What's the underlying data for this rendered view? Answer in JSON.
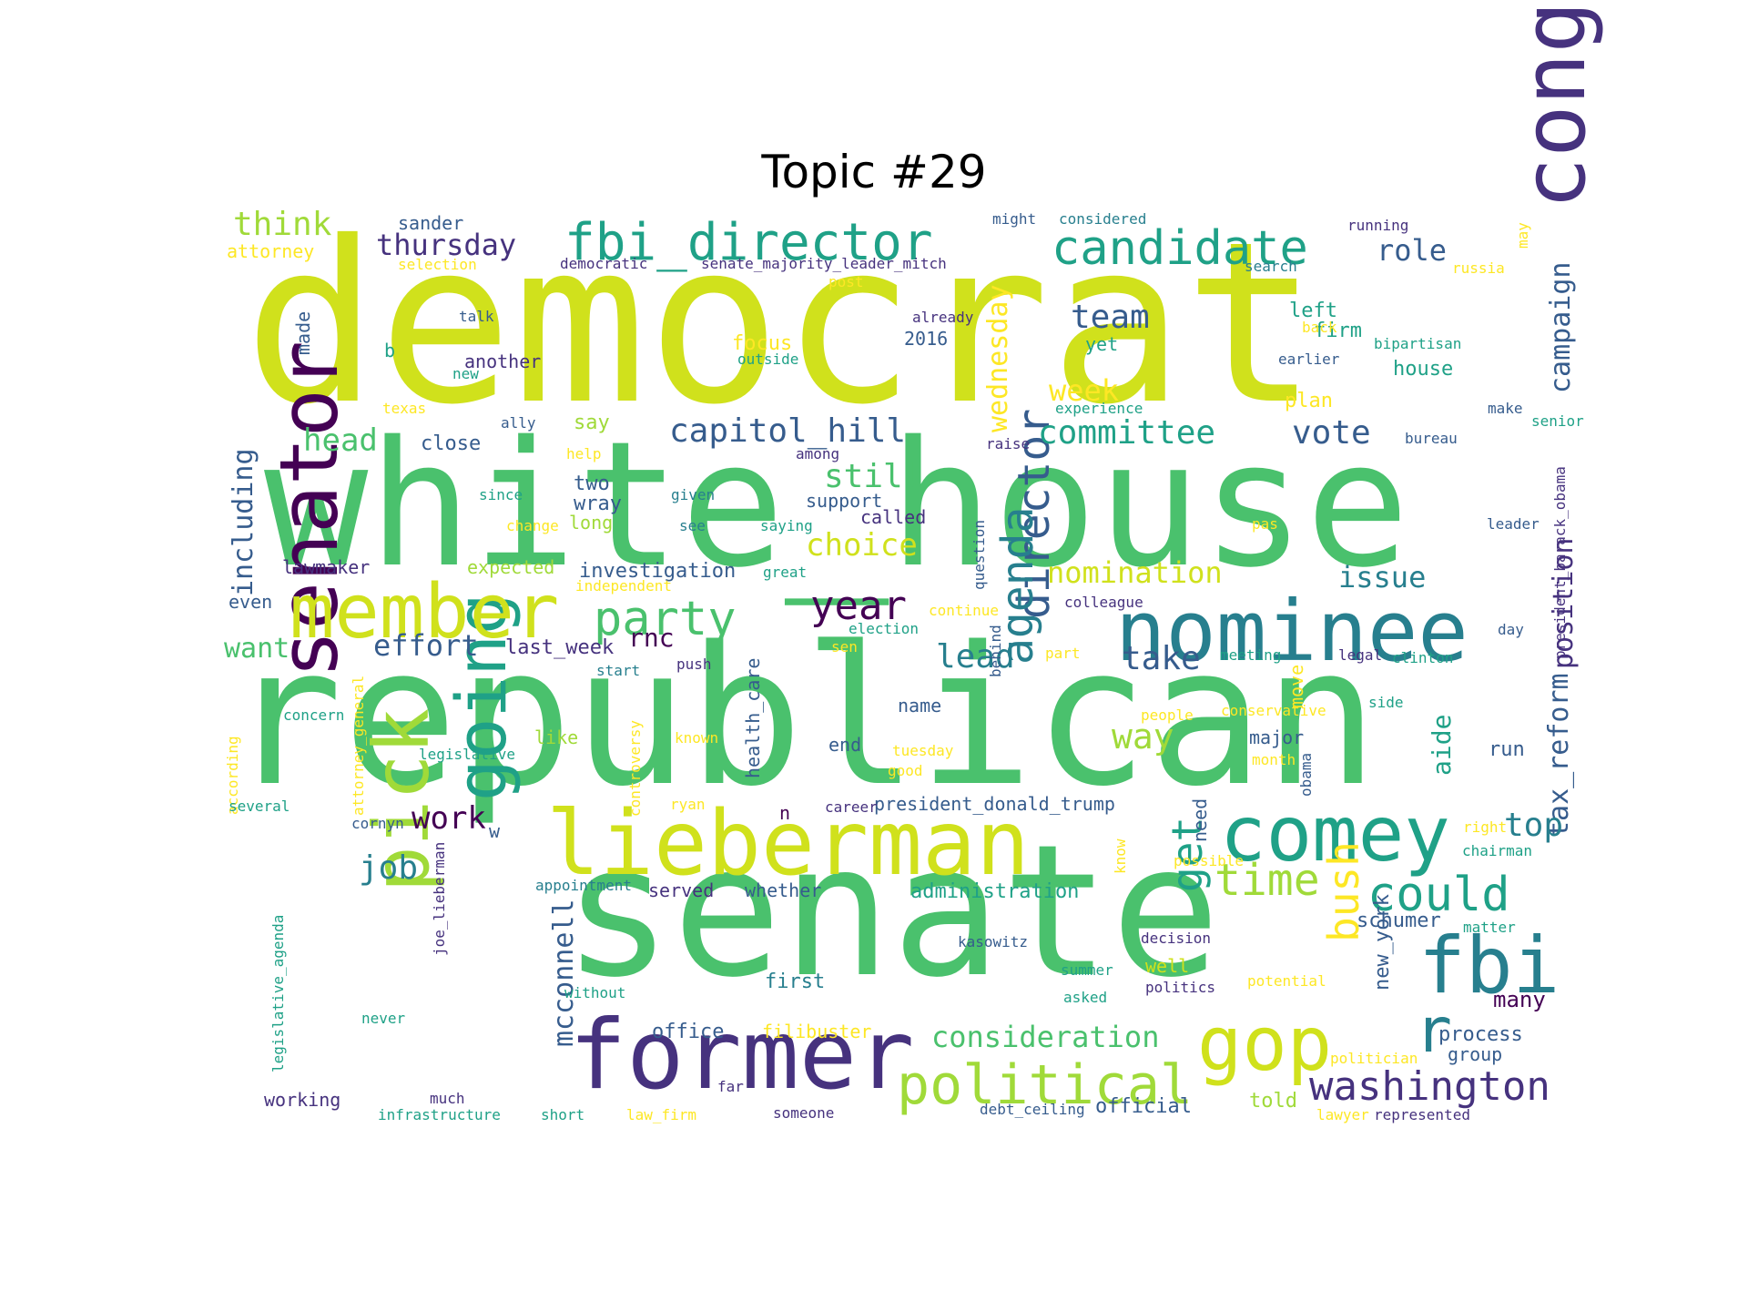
{
  "title": "Topic #29",
  "palette": {
    "dark_purple": "#46327e",
    "deep_purple": "#440154",
    "blue": "#365c8d",
    "teal_blue": "#277f8e",
    "teal": "#1fa187",
    "green": "#4ac16d",
    "light_green": "#a0da39",
    "yellow_green": "#d0e11c",
    "yellow": "#fde725"
  },
  "words": [
    {
      "text": "democrat",
      "color": "yellow_green"
    },
    {
      "text": "white_house",
      "color": "green"
    },
    {
      "text": "republican",
      "color": "green"
    },
    {
      "text": "senate",
      "color": "green"
    },
    {
      "text": "former",
      "color": "dark_purple"
    },
    {
      "text": "lieberman",
      "color": "yellow_green"
    },
    {
      "text": "congress",
      "color": "dark_purple"
    },
    {
      "text": "nominee",
      "color": "teal_blue"
    },
    {
      "text": "senator",
      "color": "deep_purple"
    },
    {
      "text": "pick",
      "color": "light_green"
    },
    {
      "text": "going",
      "color": "teal"
    },
    {
      "text": "member",
      "color": "yellow_green"
    },
    {
      "text": "comey",
      "color": "teal"
    },
    {
      "text": "fbi",
      "color": "teal_blue"
    },
    {
      "text": "gop",
      "color": "yellow_green"
    },
    {
      "text": "fbi_director",
      "color": "teal"
    },
    {
      "text": "candidate",
      "color": "teal"
    },
    {
      "text": "director",
      "color": "blue"
    },
    {
      "text": "political",
      "color": "light_green"
    },
    {
      "text": "party",
      "color": "green"
    },
    {
      "text": "agenda",
      "color": "teal_blue"
    },
    {
      "text": "time",
      "color": "light_green"
    },
    {
      "text": "could",
      "color": "teal"
    },
    {
      "text": "washington",
      "color": "dark_purple"
    },
    {
      "text": "year",
      "color": "deep_purple"
    },
    {
      "text": "get",
      "color": "teal"
    },
    {
      "text": "r",
      "color": "teal_blue"
    },
    {
      "text": "bush",
      "color": "yellow"
    },
    {
      "text": "mcconnell",
      "color": "blue"
    },
    {
      "text": "tax_reform",
      "color": "blue"
    },
    {
      "text": "position",
      "color": "dark_purple"
    },
    {
      "text": "campaign",
      "color": "blue"
    },
    {
      "text": "including",
      "color": "blue"
    },
    {
      "text": "wednesday",
      "color": "yellow"
    },
    {
      "text": "capitol_hill",
      "color": "blue"
    },
    {
      "text": "committee",
      "color": "teal"
    },
    {
      "text": "vote",
      "color": "blue"
    },
    {
      "text": "consideration",
      "color": "green"
    },
    {
      "text": "think",
      "color": "light_green"
    },
    {
      "text": "thursday",
      "color": "dark_purple"
    },
    {
      "text": "role",
      "color": "blue"
    },
    {
      "text": "team",
      "color": "blue"
    },
    {
      "text": "week",
      "color": "yellow"
    },
    {
      "text": "choice",
      "color": "yellow_green"
    },
    {
      "text": "nomination",
      "color": "yellow_green"
    },
    {
      "text": "issue",
      "color": "teal_blue"
    },
    {
      "text": "head",
      "color": "green"
    },
    {
      "text": "still",
      "color": "green"
    },
    {
      "text": "lead",
      "color": "teal_blue"
    },
    {
      "text": "take",
      "color": "blue"
    },
    {
      "text": "way",
      "color": "light_green"
    },
    {
      "text": "job",
      "color": "teal_blue"
    },
    {
      "text": "work",
      "color": "deep_purple"
    },
    {
      "text": "top",
      "color": "teal_blue"
    },
    {
      "text": "want",
      "color": "green"
    },
    {
      "text": "effort",
      "color": "blue"
    },
    {
      "text": "rnc",
      "color": "deep_purple"
    },
    {
      "text": "aide",
      "color": "teal"
    },
    {
      "text": "schumer",
      "color": "blue"
    },
    {
      "text": "new_york",
      "color": "blue"
    },
    {
      "text": "process",
      "color": "blue"
    },
    {
      "text": "many",
      "color": "deep_purple"
    },
    {
      "text": "investigation",
      "color": "blue"
    },
    {
      "text": "administration",
      "color": "teal"
    },
    {
      "text": "president_donald_trump",
      "color": "blue"
    },
    {
      "text": "first",
      "color": "teal_blue"
    },
    {
      "text": "office",
      "color": "blue"
    },
    {
      "text": "official",
      "color": "blue"
    },
    {
      "text": "told",
      "color": "light_green"
    },
    {
      "text": "close",
      "color": "blue"
    },
    {
      "text": "say",
      "color": "light_green"
    },
    {
      "text": "two",
      "color": "blue"
    },
    {
      "text": "wray",
      "color": "blue"
    },
    {
      "text": "support",
      "color": "blue"
    },
    {
      "text": "long",
      "color": "light_green"
    },
    {
      "text": "called",
      "color": "dark_purple"
    },
    {
      "text": "lawmaker",
      "color": "dark_purple"
    },
    {
      "text": "expected",
      "color": "light_green"
    },
    {
      "text": "last_week",
      "color": "dark_purple"
    },
    {
      "text": "even",
      "color": "blue"
    },
    {
      "text": "name",
      "color": "blue"
    },
    {
      "text": "end",
      "color": "blue"
    },
    {
      "text": "major",
      "color": "blue"
    },
    {
      "text": "run",
      "color": "blue"
    },
    {
      "text": "like",
      "color": "light_green"
    },
    {
      "text": "health_care",
      "color": "blue"
    },
    {
      "text": "served",
      "color": "dark_purple"
    },
    {
      "text": "whether",
      "color": "blue"
    },
    {
      "text": "working",
      "color": "dark_purple"
    },
    {
      "text": "filibuster",
      "color": "yellow"
    },
    {
      "text": "well",
      "color": "yellow_green"
    },
    {
      "text": "group",
      "color": "blue"
    },
    {
      "text": "yet",
      "color": "teal"
    },
    {
      "text": "left",
      "color": "teal"
    },
    {
      "text": "firm",
      "color": "teal"
    },
    {
      "text": "house",
      "color": "teal"
    },
    {
      "text": "plan",
      "color": "yellow"
    },
    {
      "text": "focus",
      "color": "yellow"
    },
    {
      "text": "sander",
      "color": "blue"
    },
    {
      "text": "attorney",
      "color": "yellow"
    },
    {
      "text": "another",
      "color": "dark_purple"
    },
    {
      "text": "2016",
      "color": "blue"
    },
    {
      "text": "b",
      "color": "teal"
    },
    {
      "text": "made",
      "color": "blue"
    },
    {
      "text": "need",
      "color": "blue"
    },
    {
      "text": "move",
      "color": "yellow"
    },
    {
      "text": "n",
      "color": "deep_purple"
    },
    {
      "text": "w",
      "color": "blue"
    },
    {
      "text": "might",
      "color": "blue"
    },
    {
      "text": "considered",
      "color": "teal_blue"
    },
    {
      "text": "running",
      "color": "dark_purple"
    },
    {
      "text": "democratic",
      "color": "dark_purple"
    },
    {
      "text": "senate_majority_leader_mitch",
      "color": "dark_purple"
    },
    {
      "text": "selection",
      "color": "yellow"
    },
    {
      "text": "search",
      "color": "teal_blue"
    },
    {
      "text": "russia",
      "color": "yellow"
    },
    {
      "text": "may",
      "color": "yellow"
    },
    {
      "text": "post",
      "color": "yellow"
    },
    {
      "text": "talk",
      "color": "blue"
    },
    {
      "text": "already",
      "color": "dark_purple"
    },
    {
      "text": "back",
      "color": "yellow"
    },
    {
      "text": "bipartisan",
      "color": "teal"
    },
    {
      "text": "outside",
      "color": "teal"
    },
    {
      "text": "new",
      "color": "teal"
    },
    {
      "text": "earlier",
      "color": "blue"
    },
    {
      "text": "texas",
      "color": "yellow"
    },
    {
      "text": "experience",
      "color": "teal"
    },
    {
      "text": "make",
      "color": "blue"
    },
    {
      "text": "senior",
      "color": "teal"
    },
    {
      "text": "ally",
      "color": "blue"
    },
    {
      "text": "raise",
      "color": "dark_purple"
    },
    {
      "text": "bureau",
      "color": "blue"
    },
    {
      "text": "among",
      "color": "dark_purple"
    },
    {
      "text": "help",
      "color": "yellow"
    },
    {
      "text": "president_barack_obama",
      "color": "dark_purple"
    },
    {
      "text": "since",
      "color": "teal"
    },
    {
      "text": "given",
      "color": "teal_blue"
    },
    {
      "text": "see",
      "color": "teal_blue"
    },
    {
      "text": "saying",
      "color": "teal"
    },
    {
      "text": "change",
      "color": "yellow"
    },
    {
      "text": "pas",
      "color": "yellow"
    },
    {
      "text": "leader",
      "color": "blue"
    },
    {
      "text": "question",
      "color": "blue"
    },
    {
      "text": "great",
      "color": "teal"
    },
    {
      "text": "independent",
      "color": "yellow"
    },
    {
      "text": "colleague",
      "color": "dark_purple"
    },
    {
      "text": "continue",
      "color": "yellow"
    },
    {
      "text": "election",
      "color": "teal"
    },
    {
      "text": "day",
      "color": "blue"
    },
    {
      "text": "sen",
      "color": "yellow"
    },
    {
      "text": "part",
      "color": "yellow"
    },
    {
      "text": "meeting",
      "color": "teal"
    },
    {
      "text": "legal",
      "color": "dark_purple"
    },
    {
      "text": "clinton",
      "color": "teal"
    },
    {
      "text": "behind",
      "color": "blue"
    },
    {
      "text": "start",
      "color": "teal_blue"
    },
    {
      "text": "push",
      "color": "dark_purple"
    },
    {
      "text": "attorney_general",
      "color": "yellow"
    },
    {
      "text": "according",
      "color": "yellow"
    },
    {
      "text": "concern",
      "color": "teal"
    },
    {
      "text": "controversy",
      "color": "yellow"
    },
    {
      "text": "people",
      "color": "yellow"
    },
    {
      "text": "conservative",
      "color": "yellow"
    },
    {
      "text": "side",
      "color": "teal"
    },
    {
      "text": "known",
      "color": "yellow"
    },
    {
      "text": "legislative",
      "color": "teal"
    },
    {
      "text": "tuesday",
      "color": "yellow"
    },
    {
      "text": "month",
      "color": "yellow"
    },
    {
      "text": "obama",
      "color": "blue"
    },
    {
      "text": "good",
      "color": "yellow"
    },
    {
      "text": "several",
      "color": "teal"
    },
    {
      "text": "ryan",
      "color": "yellow"
    },
    {
      "text": "career",
      "color": "dark_purple"
    },
    {
      "text": "cornyn",
      "color": "blue"
    },
    {
      "text": "right",
      "color": "yellow"
    },
    {
      "text": "chairman",
      "color": "teal"
    },
    {
      "text": "joe_lieberman",
      "color": "dark_purple"
    },
    {
      "text": "know",
      "color": "yellow"
    },
    {
      "text": "possible",
      "color": "yellow"
    },
    {
      "text": "appointment",
      "color": "teal_blue"
    },
    {
      "text": "legislative_agenda",
      "color": "teal"
    },
    {
      "text": "kasowitz",
      "color": "blue"
    },
    {
      "text": "decision",
      "color": "dark_purple"
    },
    {
      "text": "matter",
      "color": "teal"
    },
    {
      "text": "summer",
      "color": "teal"
    },
    {
      "text": "politics",
      "color": "dark_purple"
    },
    {
      "text": "potential",
      "color": "yellow"
    },
    {
      "text": "without",
      "color": "teal"
    },
    {
      "text": "asked",
      "color": "teal"
    },
    {
      "text": "never",
      "color": "teal"
    },
    {
      "text": "politician",
      "color": "yellow"
    },
    {
      "text": "far",
      "color": "dark_purple"
    },
    {
      "text": "much",
      "color": "dark_purple"
    },
    {
      "text": "infrastructure",
      "color": "teal"
    },
    {
      "text": "short",
      "color": "teal"
    },
    {
      "text": "law_firm",
      "color": "yellow"
    },
    {
      "text": "someone",
      "color": "dark_purple"
    },
    {
      "text": "debt_ceiling",
      "color": "blue"
    },
    {
      "text": "lawyer",
      "color": "yellow"
    },
    {
      "text": "represented",
      "color": "dark_purple"
    }
  ]
}
